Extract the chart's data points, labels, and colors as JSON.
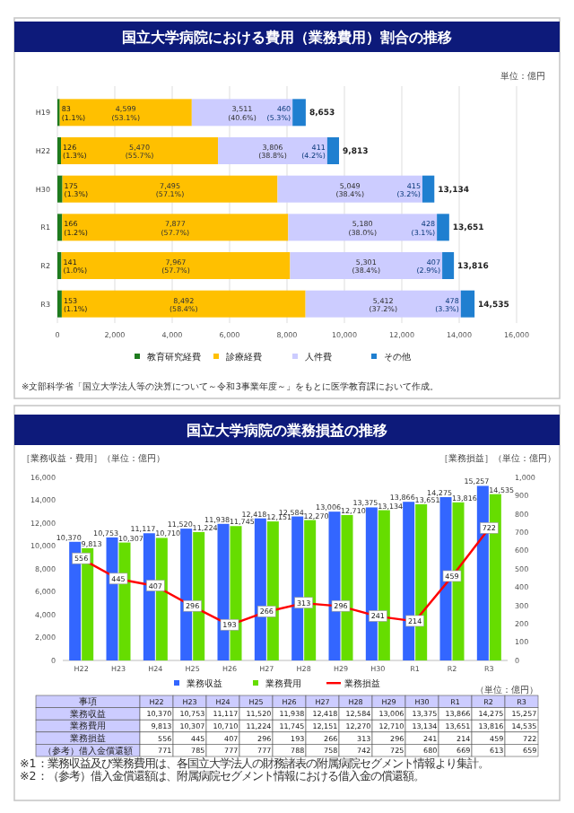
{
  "chart_data": [
    {
      "type": "bar",
      "orientation": "horizontal",
      "stacked": true,
      "title": "国立大学病院における費用（業務費用）割合の推移",
      "categories": [
        "H19",
        "H22",
        "H30",
        "R1",
        "R2",
        "R3"
      ],
      "series": [
        {
          "name": "教育研究経費",
          "color": "#1e7b1e",
          "values": [
            83,
            126,
            175,
            166,
            141,
            153
          ],
          "value_labels": [
            "83\n(1.1%)",
            "126\n(1.3%)",
            "175\n(1.3%)",
            "166\n(1.2%)",
            "141\n(1.0%)",
            "153\n(1.1%)"
          ]
        },
        {
          "name": "診療経費",
          "color": "#ffc000",
          "values": [
            4599,
            5470,
            7495,
            7877,
            7967,
            8492
          ],
          "value_labels": [
            "4,599\n(53.1%)",
            "5,470\n(55.7%)",
            "7,495\n(57.1%)",
            "7,877\n(57.7%)",
            "7,967\n(57.7%)",
            "8,492\n(58.4%)"
          ]
        },
        {
          "name": "人件費",
          "color": "#ccccff",
          "values": [
            3511,
            3806,
            5049,
            5180,
            5301,
            5412
          ],
          "value_labels": [
            "3,511\n(40.6%)",
            "3,806\n(38.8%)",
            "5,049\n(38.4%)",
            "5,180\n(38.0%)",
            "5,301\n(38.4%)",
            "5,412\n(37.2%)"
          ]
        },
        {
          "name": "その他",
          "color": "#1f7fd0",
          "values": [
            460,
            411,
            415,
            428,
            407,
            478
          ],
          "value_labels": [
            "460\n(5.3%)",
            "411\n(4.2%)",
            "415\n(3.2%)",
            "428\n(3.1%)",
            "407\n(2.9%)",
            "478\n(3.3%)"
          ]
        }
      ],
      "totals": [
        "8,653",
        "9,813",
        "13,134",
        "13,651",
        "13,816",
        "14,535"
      ],
      "xlim": [
        0,
        16000
      ],
      "xticks": [
        0,
        {
          "value": 2000,
          "label": "2,000"
        },
        {
          "value": 4000,
          "label": "4,000"
        },
        {
          "value": 6000,
          "label": "6,000"
        },
        {
          "value": 8000,
          "label": "8,000"
        },
        {
          "value": 10000,
          "label": "10,000"
        },
        {
          "value": 12000,
          "label": "12,000"
        },
        {
          "value": 14000,
          "label": "14,000"
        },
        {
          "value": 16000,
          "label": "16,000"
        }
      ],
      "grid": "x",
      "legend": "bottom",
      "annotations": [
        "単位：億円",
        "※文部科学省「国立大学法人等の決算について～令和3事業年度～」をもとに医学教育課において作成。"
      ]
    },
    {
      "type": "bar",
      "title": "国立大学病院の業務損益の推移",
      "ylabel": "［業務収益・費用］（単位：億円）",
      "y2label": "［業務損益］（単位：億円）",
      "categories": [
        "H22",
        "H23",
        "H24",
        "H25",
        "H26",
        "H27",
        "H28",
        "H29",
        "H30",
        "R1",
        "R2",
        "R3"
      ],
      "series": [
        {
          "name": "業務収益",
          "color": "#3366ff",
          "values": [
            10370,
            10753,
            11117,
            11520,
            11938,
            12418,
            12584,
            13006,
            13375,
            13866,
            14275,
            15257
          ],
          "value_labels": [
            "10,370",
            "10,753",
            "11,117",
            "11,520",
            "11,938",
            "12,418",
            "12,584",
            "13,006",
            "13,375",
            "13,866",
            "14,275",
            "15,257"
          ]
        },
        {
          "name": "業務費用",
          "color": "#66dd00",
          "values": [
            9813,
            10307,
            10710,
            11224,
            11745,
            12151,
            12270,
            12710,
            13134,
            13651,
            13816,
            14535
          ],
          "value_labels": [
            "9,813",
            "10,307",
            "10,710",
            "11,224",
            "11,745",
            "12,151",
            "12,270",
            "12,710",
            "13,134",
            "13,651",
            "13,816",
            "14,535"
          ]
        },
        {
          "name": "業務損益",
          "type": "line",
          "axis": "y2",
          "color": "#ff0000",
          "marker": "square",
          "values": [
            556,
            445,
            407,
            296,
            193,
            266,
            313,
            296,
            241,
            214,
            459,
            722
          ],
          "value_labels": [
            "556",
            "445",
            "407",
            "296",
            "193",
            "266",
            "313",
            "296",
            "241",
            "214",
            "459",
            "722"
          ]
        }
      ],
      "ylim": [
        0,
        16000
      ],
      "yticks": [
        0,
        {
          "value": 2000,
          "label": "2,000"
        },
        {
          "value": 4000,
          "label": "4,000"
        },
        {
          "value": 6000,
          "label": "6,000"
        },
        {
          "value": 8000,
          "label": "8,000"
        },
        {
          "value": 10000,
          "label": "10,000"
        },
        {
          "value": 12000,
          "label": "12,000"
        },
        {
          "value": 14000,
          "label": "14,000"
        },
        {
          "value": 16000,
          "label": "16,000"
        }
      ],
      "y2lim": [
        0,
        1000
      ],
      "y2ticks": [
        0,
        100,
        200,
        300,
        400,
        500,
        600,
        700,
        800,
        900,
        {
          "value": 1000,
          "label": "1,000"
        }
      ],
      "data_labels": true,
      "legend": "bottom",
      "annotations": [
        "（単位：億円）",
        "事項",
        "※1：業務収益及び業務費用は、各国立大学法人の財務諸表の附属病院セグメント情報より集計。",
        "※2：（参考）借入金償還額は、附属病院セグメント情報における借入金の償還額。"
      ]
    },
    {
      "type": "other",
      "title": "（参考）借入金償還額",
      "values": [
        771,
        785,
        777,
        777,
        788,
        758,
        742,
        725,
        680,
        669,
        613,
        659
      ],
      "data_labels": true
    }
  ]
}
